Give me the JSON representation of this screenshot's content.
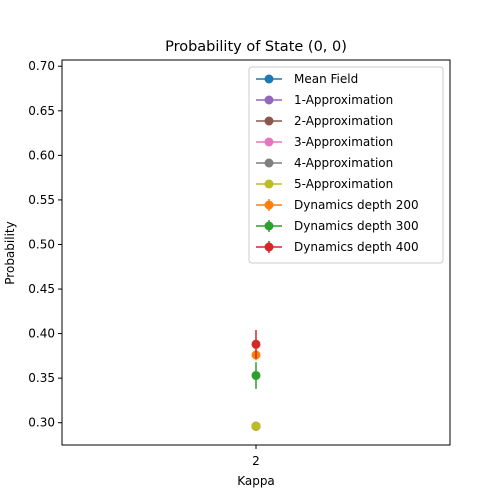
{
  "chart_data": {
    "type": "scatter",
    "title": "Probability of State (0, 0)",
    "xlabel": "Kappa",
    "ylabel": "Probability",
    "categories": [
      "2"
    ],
    "ylim": [
      0.275,
      0.707
    ],
    "yticks": [
      0.3,
      0.35,
      0.4,
      0.45,
      0.5,
      0.55,
      0.6,
      0.65,
      0.7
    ],
    "ytick_labels": [
      "0.30",
      "0.35",
      "0.40",
      "0.45",
      "0.50",
      "0.55",
      "0.60",
      "0.65",
      "0.70"
    ],
    "grid": false,
    "legend_position": "top-right",
    "series": [
      {
        "name": "Mean Field",
        "color": "#1f77b4",
        "values": [
          0.296
        ],
        "error": null
      },
      {
        "name": "1-Approximation",
        "color": "#9467bd",
        "values": [
          0.296
        ],
        "error": null
      },
      {
        "name": "2-Approximation",
        "color": "#8c564b",
        "values": [
          0.296
        ],
        "error": null
      },
      {
        "name": "3-Approximation",
        "color": "#e377c2",
        "values": [
          0.296
        ],
        "error": null
      },
      {
        "name": "4-Approximation",
        "color": "#7f7f7f",
        "values": [
          0.296
        ],
        "error": null
      },
      {
        "name": "5-Approximation",
        "color": "#bcbd22",
        "values": [
          0.296
        ],
        "error": null
      },
      {
        "name": "Dynamics depth 200",
        "color": "#ff7f0e",
        "values": [
          0.376
        ],
        "error": [
          0.006
        ]
      },
      {
        "name": "Dynamics depth 300",
        "color": "#2ca02c",
        "values": [
          0.353
        ],
        "error": [
          0.015
        ]
      },
      {
        "name": "Dynamics depth 400",
        "color": "#d62728",
        "values": [
          0.388
        ],
        "error": [
          0.016
        ]
      }
    ]
  }
}
